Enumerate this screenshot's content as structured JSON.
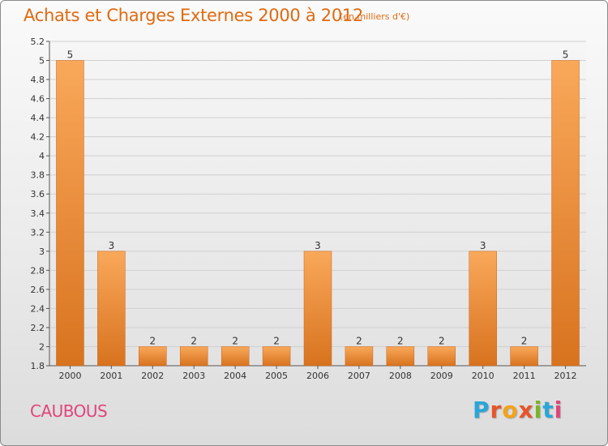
{
  "header": {
    "title": "Achats et Charges Externes 2000 à 2012",
    "subtitle": "(en milliers d'€)"
  },
  "footer": {
    "town": "CAUBOUS",
    "logo_letters": [
      "P",
      "r",
      "o",
      "x",
      "i",
      "t",
      "i"
    ],
    "logo_colors": [
      "#2aa6d8",
      "#e8542a",
      "#f2a31a",
      "#e8542a",
      "#7bb527",
      "#2aa6d8",
      "#e0457b"
    ]
  },
  "colors": {
    "bar_top": "#f9a85a",
    "bar_bottom": "#d8731f",
    "bar_edge": "#c9651a",
    "title": "#e06a10",
    "town": "#e0457b",
    "grid": "#d0d0d0"
  },
  "chart_data": {
    "type": "bar",
    "categories": [
      "2000",
      "2001",
      "2002",
      "2003",
      "2004",
      "2005",
      "2006",
      "2007",
      "2008",
      "2009",
      "2010",
      "2011",
      "2012"
    ],
    "values": [
      5,
      3,
      2,
      2,
      2,
      2,
      3,
      2,
      2,
      2,
      3,
      2,
      5
    ],
    "data_labels": [
      "5",
      "3",
      "2",
      "2",
      "2",
      "2",
      "3",
      "2",
      "2",
      "2",
      "3",
      "2",
      "5"
    ],
    "ylim": [
      1.8,
      5.2
    ],
    "yticks": [
      1.8,
      2,
      2.2,
      2.4,
      2.6,
      2.8,
      3,
      3.2,
      3.4,
      3.6,
      3.8,
      4,
      4.2,
      4.4,
      4.6,
      4.8,
      5,
      5.2
    ],
    "ytick_labels": [
      "1.8",
      "2",
      "2.2",
      "2.4",
      "2.6",
      "2.8",
      "3",
      "3.2",
      "3.4",
      "3.6",
      "3.8",
      "4",
      "4.2",
      "4.4",
      "4.6",
      "4.8",
      "5",
      "5.2"
    ],
    "grid": true,
    "legend": "none"
  }
}
